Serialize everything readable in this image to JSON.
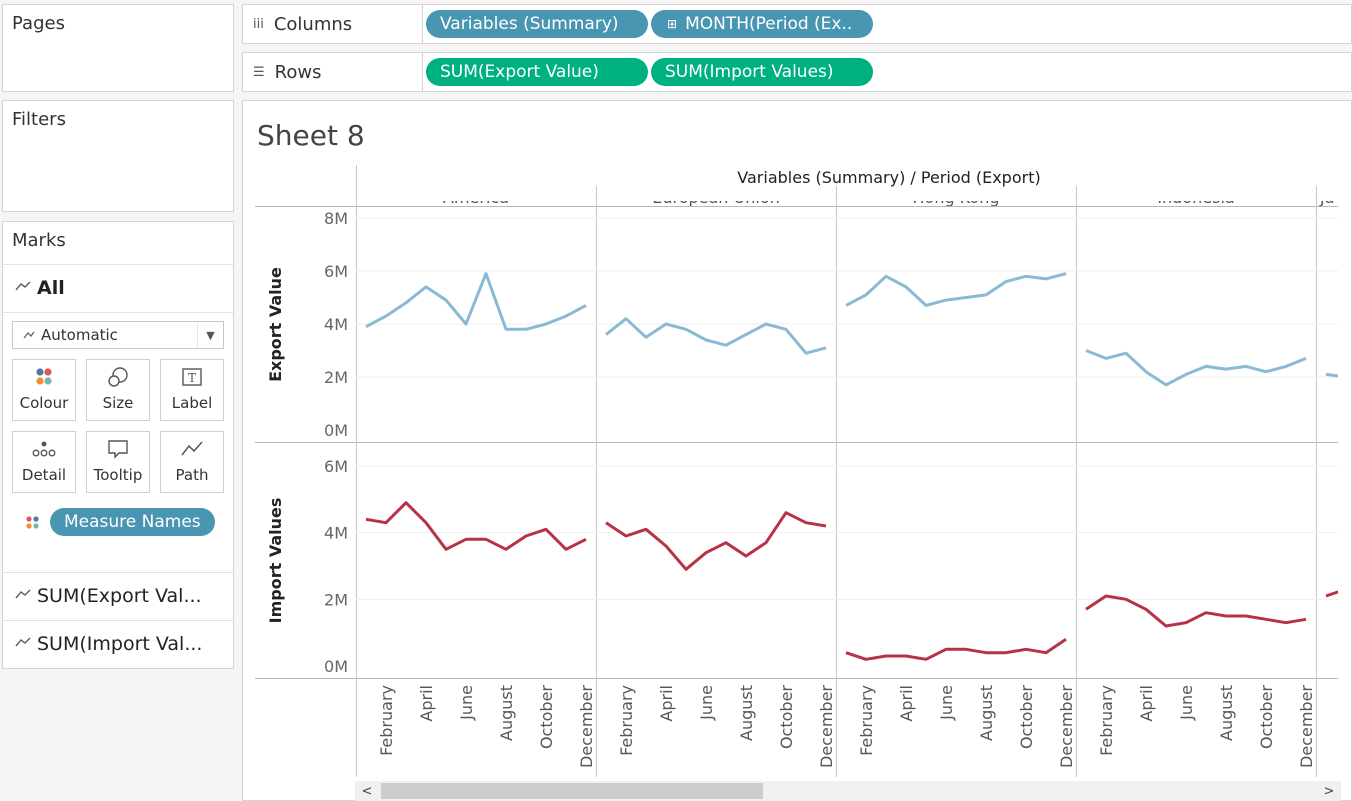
{
  "pages": {
    "title": "Pages"
  },
  "filters": {
    "title": "Filters"
  },
  "marks": {
    "title": "Marks",
    "all_label": "All",
    "mark_type": "Automatic",
    "buttons": [
      {
        "label": "Colour",
        "icon": "colour-icon"
      },
      {
        "label": "Size",
        "icon": "size-icon"
      },
      {
        "label": "Label",
        "icon": "label-icon"
      },
      {
        "label": "Detail",
        "icon": "detail-icon"
      },
      {
        "label": "Tooltip",
        "icon": "tooltip-icon"
      },
      {
        "label": "Path",
        "icon": "path-icon"
      }
    ],
    "colour_pill": "Measure Names",
    "measures": [
      "SUM(Export Val...",
      "SUM(Import Val..."
    ]
  },
  "shelves": {
    "columns_label": "Columns",
    "rows_label": "Rows",
    "columns_pills": [
      "Variables (Summary)",
      "MONTH(Period (Ex.."
    ],
    "rows_pills": [
      "SUM(Export Value)",
      "SUM(Import Values)"
    ]
  },
  "sheet": {
    "title": "Sheet 8"
  },
  "colors": {
    "export": "#8ab9d4",
    "import": "#b83247",
    "blue_pill": "#4996b2",
    "green_pill": "#00b180"
  },
  "chart_data": {
    "type": "line",
    "title": "Variables (Summary) / Period (Export)",
    "panes": [
      "America",
      "European Union",
      "Hong Kong",
      "Indonesia",
      "Ja"
    ],
    "x_tick_labels": [
      "February",
      "April",
      "June",
      "August",
      "October",
      "December"
    ],
    "rows": [
      {
        "ylabel": "Export Value",
        "ylim": [
          0,
          8
        ],
        "yticks": [
          "0M",
          "2M",
          "4M",
          "6M",
          "8M"
        ],
        "tick_values": [
          0,
          2,
          4,
          6,
          8
        ],
        "series": [
          [
            3.9,
            4.3,
            4.8,
            5.4,
            4.9,
            4.0,
            5.9,
            3.8,
            3.8,
            4.0,
            4.3,
            4.7
          ],
          [
            3.6,
            4.2,
            3.5,
            4.0,
            3.8,
            3.4,
            3.2,
            3.6,
            4.0,
            3.8,
            2.9,
            3.1
          ],
          [
            4.7,
            5.1,
            5.8,
            5.4,
            4.7,
            4.9,
            5.0,
            5.1,
            5.6,
            5.8,
            5.7,
            5.9
          ],
          [
            3.0,
            2.7,
            2.9,
            2.2,
            1.7,
            2.1,
            2.4,
            2.3,
            2.4,
            2.2,
            2.4,
            2.7
          ],
          [
            2.1,
            2.0
          ]
        ]
      },
      {
        "ylabel": "Import Values",
        "ylim": [
          0,
          6
        ],
        "yticks": [
          "0M",
          "2M",
          "4M",
          "6M"
        ],
        "tick_values": [
          0,
          2,
          4,
          6
        ],
        "series": [
          [
            4.4,
            4.3,
            4.9,
            4.3,
            3.5,
            3.8,
            3.8,
            3.5,
            3.9,
            4.1,
            3.5,
            3.8
          ],
          [
            4.3,
            3.9,
            4.1,
            3.6,
            2.9,
            3.4,
            3.7,
            3.3,
            3.7,
            4.6,
            4.3,
            4.2
          ],
          [
            0.4,
            0.2,
            0.3,
            0.3,
            0.2,
            0.5,
            0.5,
            0.4,
            0.4,
            0.5,
            0.4,
            0.8
          ],
          [
            1.7,
            2.1,
            2.0,
            1.7,
            1.2,
            1.3,
            1.6,
            1.5,
            1.5,
            1.4,
            1.3,
            1.4
          ],
          [
            2.1,
            2.3
          ]
        ]
      }
    ]
  }
}
